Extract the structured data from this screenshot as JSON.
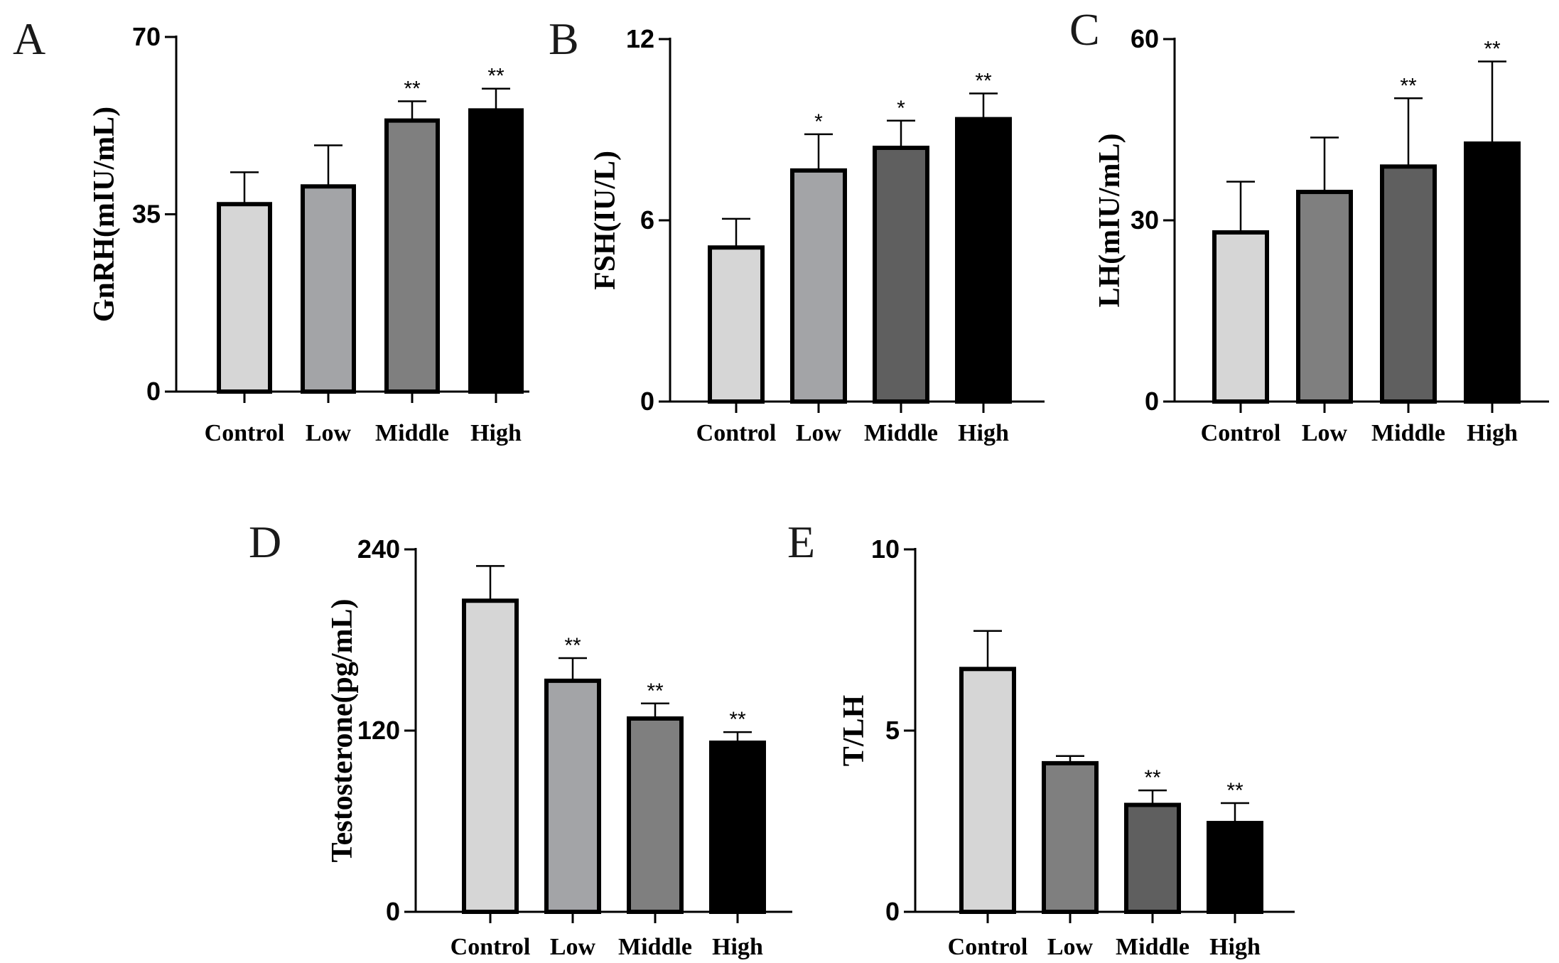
{
  "chart_data": [
    {
      "type": "bar",
      "panel": "A",
      "title": "",
      "xlabel": "",
      "ylabel": "GnRH(mIU/mL)",
      "ylim": [
        0,
        70
      ],
      "yticks": [
        0,
        35,
        70
      ],
      "categories": [
        "Control",
        "Low",
        "Middle",
        "High"
      ],
      "values": [
        37,
        40.5,
        53.5,
        55.5
      ],
      "errors": [
        6.3,
        8.1,
        3.8,
        4.3
      ],
      "significance": [
        "",
        "",
        "**",
        "**"
      ],
      "colors": [
        "#d6d6d6",
        "#a3a4a7",
        "#7f7f7f",
        "#000000"
      ]
    },
    {
      "type": "bar",
      "panel": "B",
      "title": "",
      "xlabel": "",
      "ylabel": "FSH(IU/L)",
      "ylim": [
        0,
        12
      ],
      "yticks": [
        0,
        6,
        12
      ],
      "categories": [
        "Control",
        "Low",
        "Middle",
        "High"
      ],
      "values": [
        5.1,
        7.65,
        8.4,
        9.35
      ],
      "errors": [
        0.95,
        1.2,
        0.9,
        0.85
      ],
      "significance": [
        "",
        "*",
        "*",
        "**"
      ],
      "colors": [
        "#d6d6d6",
        "#a3a4a7",
        "#5f5f5f",
        "#000000"
      ]
    },
    {
      "type": "bar",
      "panel": "C",
      "title": "",
      "xlabel": "",
      "ylabel": "LH(mIU/mL)",
      "ylim": [
        0,
        60
      ],
      "yticks": [
        0,
        30,
        60
      ],
      "categories": [
        "Control",
        "Low",
        "Middle",
        "High"
      ],
      "values": [
        28,
        34.7,
        38.9,
        42.7
      ],
      "errors": [
        8.4,
        9.0,
        11.3,
        13.6
      ],
      "significance": [
        "",
        "",
        "**",
        "**"
      ],
      "colors": [
        "#d6d6d6",
        "#7f7f7f",
        "#5f5f5f",
        "#000000"
      ]
    },
    {
      "type": "bar",
      "panel": "D",
      "title": "",
      "xlabel": "",
      "ylabel": "Testosterone(pg/mL)",
      "ylim": [
        0,
        240
      ],
      "yticks": [
        0,
        120,
        240
      ],
      "categories": [
        "Control",
        "Low",
        "Middle",
        "High"
      ],
      "values": [
        206,
        153,
        128,
        112
      ],
      "errors": [
        23,
        15,
        10,
        7
      ],
      "significance": [
        "",
        "**",
        "**",
        "**"
      ],
      "colors": [
        "#d6d6d6",
        "#a3a4a7",
        "#7f7f7f",
        "#000000"
      ]
    },
    {
      "type": "bar",
      "panel": "E",
      "title": "",
      "xlabel": "",
      "ylabel": "T/LH",
      "ylim": [
        0,
        10
      ],
      "yticks": [
        0,
        5,
        10
      ],
      "categories": [
        "Control",
        "Low",
        "Middle",
        "High"
      ],
      "values": [
        6.7,
        4.1,
        2.95,
        2.45
      ],
      "errors": [
        1.05,
        0.2,
        0.4,
        0.55
      ],
      "significance": [
        "",
        "",
        "**",
        "**"
      ],
      "colors": [
        "#d6d6d6",
        "#7f7f7f",
        "#5f5f5f",
        "#000000"
      ]
    }
  ]
}
